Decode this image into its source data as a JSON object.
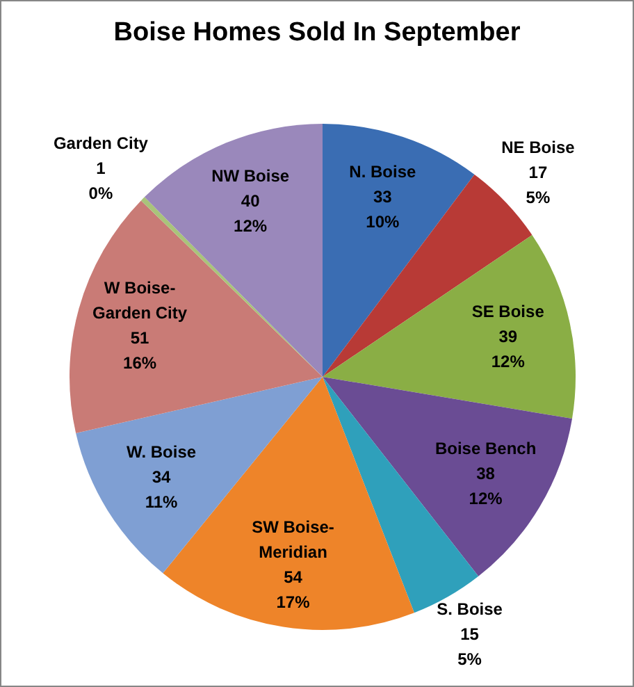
{
  "chart_data": {
    "type": "pie",
    "title": "Boise Homes Sold In September",
    "categories": [
      "N. Boise",
      "NE Boise",
      "SE Boise",
      "Boise Bench",
      "S. Boise",
      "SW Boise-Meridian",
      "W. Boise",
      "W Boise-Garden City",
      "Garden City",
      "NW Boise"
    ],
    "values": [
      33,
      17,
      39,
      38,
      15,
      54,
      34,
      51,
      1,
      40
    ],
    "colors": [
      "#3a6db3",
      "#b83a36",
      "#8aae45",
      "#6a4c94",
      "#2fa0bb",
      "#ee8429",
      "#7f9fd3",
      "#c97b76",
      "#a9c47a",
      "#9a88bb"
    ],
    "value_labels": [
      "33\n10%",
      "17\n5%",
      "39\n12%",
      "38\n12%",
      "15\n5%",
      "54\n17%",
      "34\n11%",
      "51\n16%",
      "1\n0%",
      "40\n12%"
    ]
  }
}
